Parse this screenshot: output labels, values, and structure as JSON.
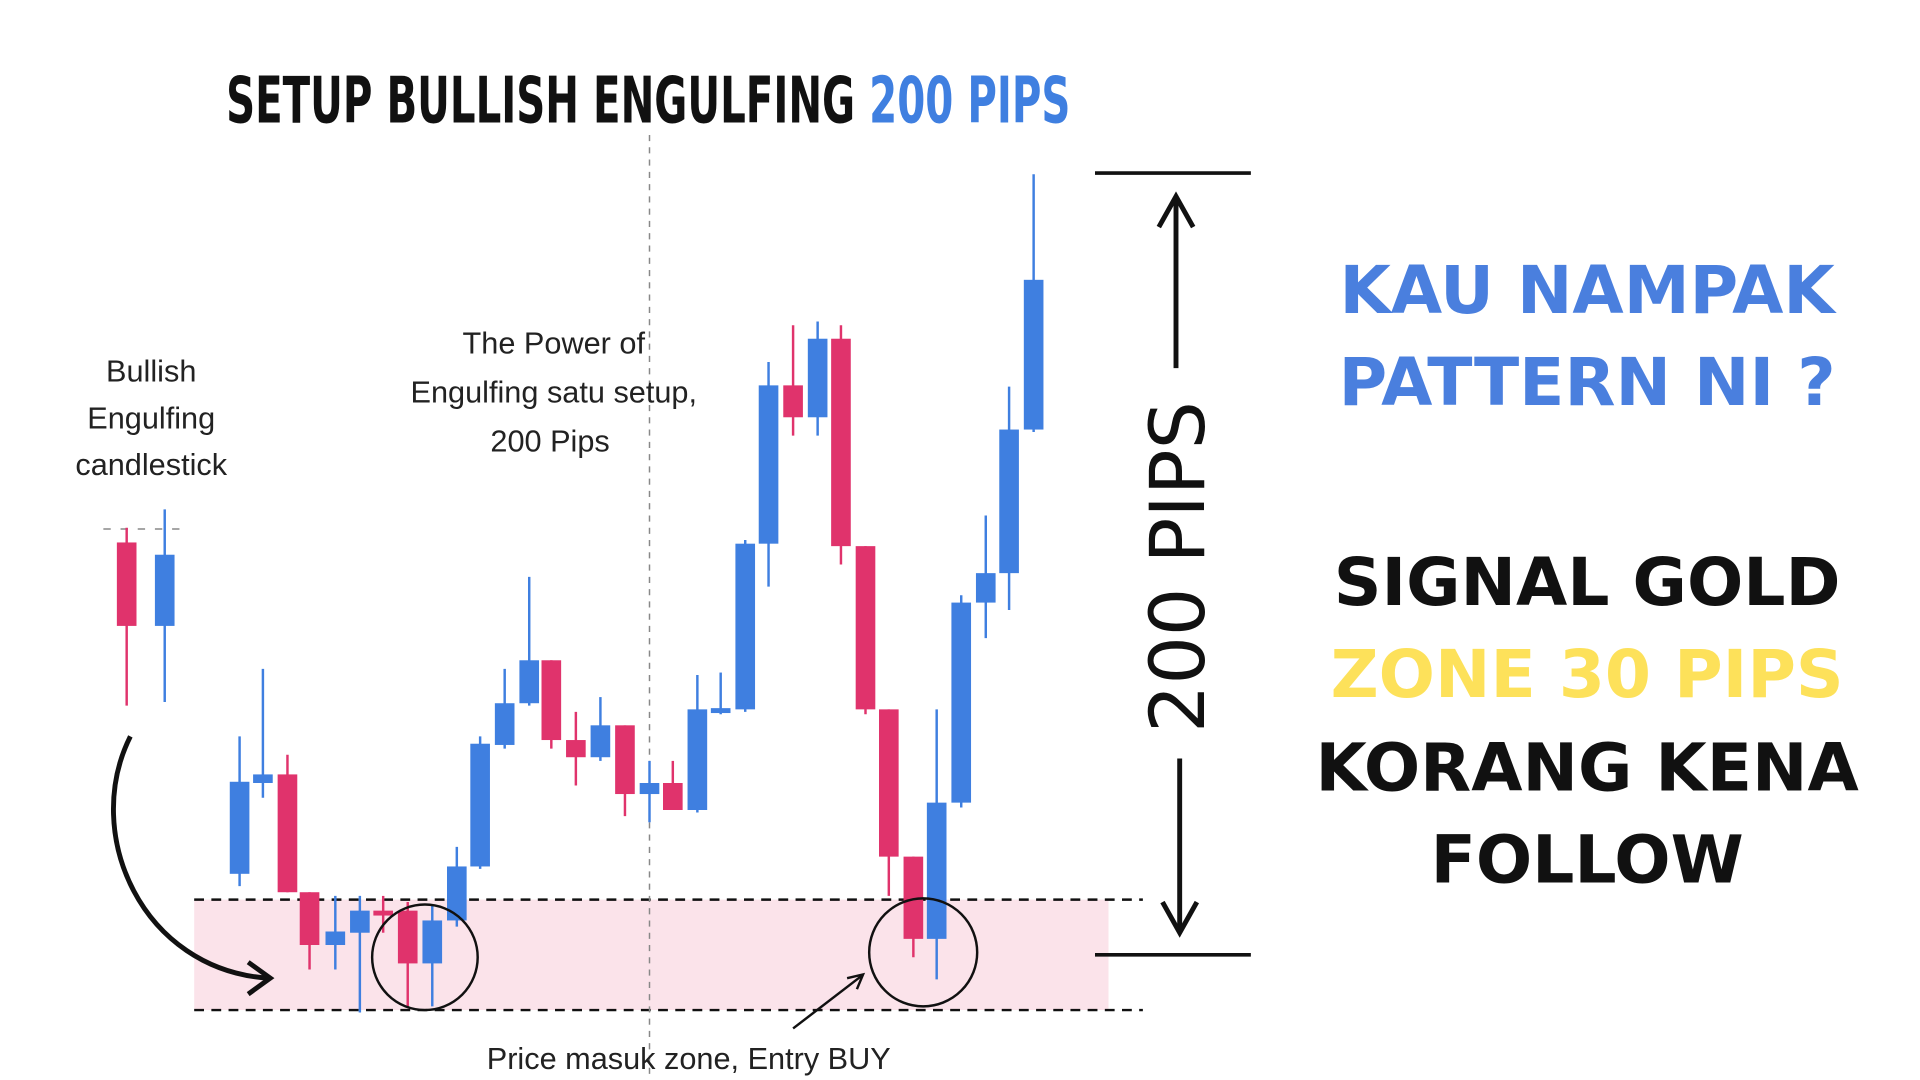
{
  "title": {
    "main": "SETUP BULLISH ENGULFING",
    "highlight": "200 PIPS"
  },
  "annotations": {
    "bullish_engulfing": [
      "Bullish",
      "Engulfing",
      "candlestick"
    ],
    "power": [
      "The Power of",
      "Engulfing satu setup,",
      "200 Pips"
    ],
    "measure": "200 PIPS",
    "entry": "Price masuk zone, Entry BUY"
  },
  "side_text": {
    "question": [
      "KAU NAMPAK",
      "PATTERN NI ?"
    ],
    "signal": "SIGNAL GOLD",
    "zone": "ZONE 30 PIPS",
    "follow": [
      "KORANG KENA",
      "FOLLOW"
    ]
  }
}
